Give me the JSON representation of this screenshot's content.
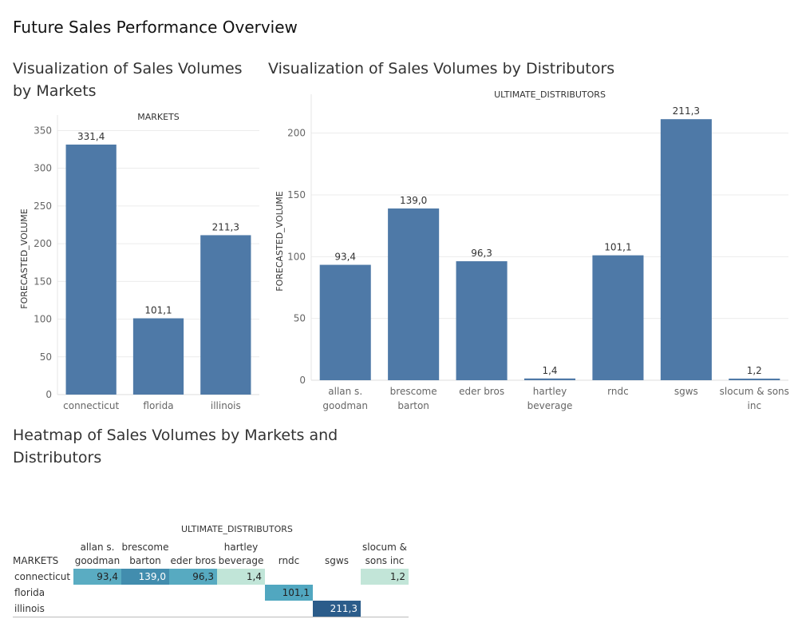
{
  "page_title": "Future Sales Performance Overview",
  "colors": {
    "bar": "#4e79a7",
    "heat_scale": [
      "#c3e6d8",
      "#4ca4bf",
      "#2b5c8a"
    ]
  },
  "sections": {
    "markets_title_line1": "Visualization of Sales Volumes",
    "markets_title_line2": "by Markets",
    "distributors_title": "Visualization of Sales Volumes by Distributors",
    "heatmap_title_line1": "Heatmap of Sales Volumes by Markets and",
    "heatmap_title_line2": "Distributors"
  },
  "chart_data": [
    {
      "type": "bar",
      "header": "MARKETS",
      "ylabel": "FORECASTED_VOLUME",
      "categories": [
        "connecticut",
        "florida",
        "illinois"
      ],
      "values": [
        331.4,
        101.1,
        211.3
      ],
      "value_labels": [
        "331,4",
        "101,1",
        "211,3"
      ],
      "ylim": [
        0,
        360
      ],
      "yticks": [
        0,
        50,
        100,
        150,
        200,
        250,
        300,
        350
      ],
      "grid": true
    },
    {
      "type": "bar",
      "header": "ULTIMATE_DISTRIBUTORS",
      "ylabel": "FORECASTED_VOLUME",
      "categories": [
        [
          "allan s.",
          "goodman"
        ],
        [
          "brescome",
          "barton"
        ],
        [
          "eder bros"
        ],
        [
          "hartley",
          "beverage"
        ],
        [
          "rndc"
        ],
        [
          "sgws"
        ],
        [
          "slocum & sons",
          "inc"
        ]
      ],
      "values": [
        93.4,
        139.0,
        96.3,
        1.4,
        101.1,
        211.3,
        1.2
      ],
      "value_labels": [
        "93,4",
        "139,0",
        "96,3",
        "1,4",
        "101,1",
        "211,3",
        "1,2"
      ],
      "ylim": [
        0,
        225
      ],
      "yticks": [
        0,
        50,
        100,
        150,
        200
      ],
      "grid": true
    },
    {
      "type": "heatmap",
      "header": "ULTIMATE_DISTRIBUTORS",
      "row_header": "MARKETS",
      "columns": [
        [
          "allan s.",
          "goodman"
        ],
        [
          "brescome",
          "barton"
        ],
        [
          "eder bros"
        ],
        [
          "hartley",
          "beverage"
        ],
        [
          "rndc"
        ],
        [
          "sgws"
        ],
        [
          "slocum &",
          "sons inc"
        ]
      ],
      "rows": [
        {
          "label": "connecticut",
          "values": [
            93.4,
            139.0,
            96.3,
            1.4,
            null,
            null,
            1.2
          ],
          "labels": [
            "93,4",
            "139,0",
            "96,3",
            "1,4",
            "",
            "",
            "1,2"
          ]
        },
        {
          "label": "florida",
          "values": [
            null,
            null,
            null,
            null,
            101.1,
            null,
            null
          ],
          "labels": [
            "",
            "",
            "",
            "",
            "101,1",
            "",
            ""
          ]
        },
        {
          "label": "illinois",
          "values": [
            null,
            null,
            null,
            null,
            null,
            211.3,
            null
          ],
          "labels": [
            "",
            "",
            "",
            "",
            "",
            "211,3",
            ""
          ]
        }
      ]
    }
  ]
}
